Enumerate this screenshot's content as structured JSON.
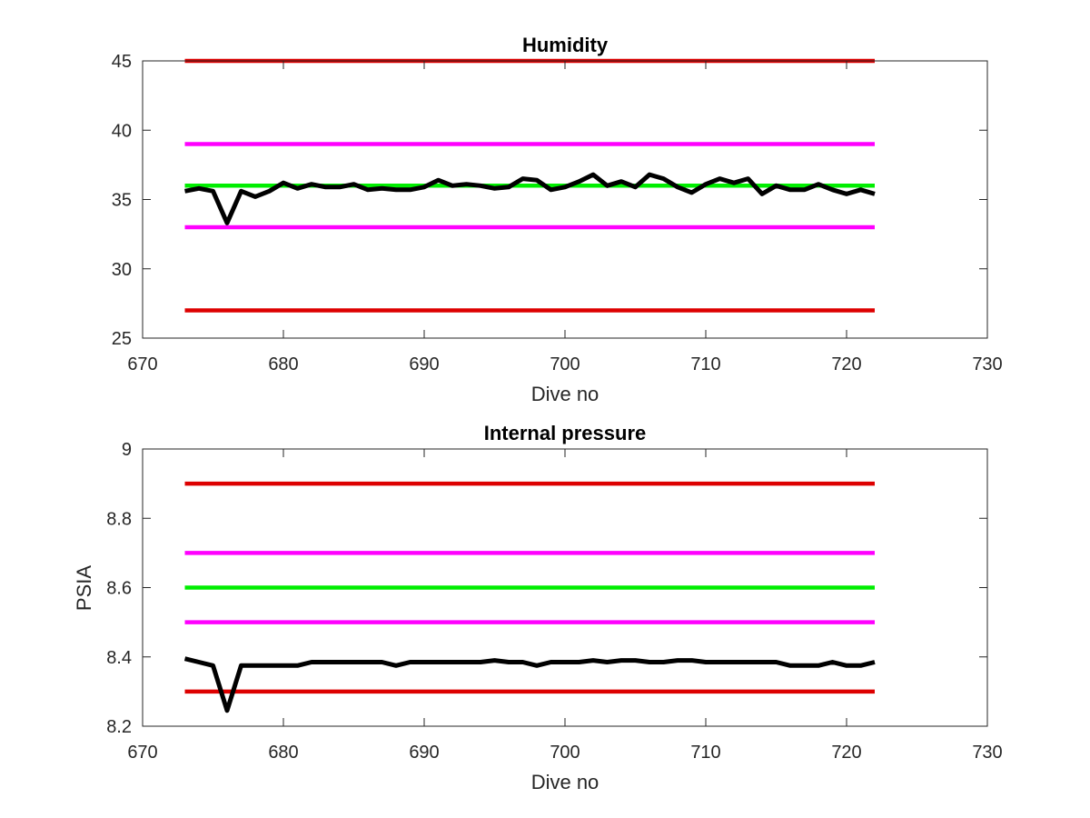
{
  "chart_data": [
    {
      "type": "line",
      "title": "Humidity",
      "xlabel": "Dive no",
      "ylabel": "",
      "xlim": [
        670,
        730
      ],
      "ylim": [
        25,
        45
      ],
      "xticks": [
        670,
        680,
        690,
        700,
        710,
        720,
        730
      ],
      "yticks": [
        25,
        30,
        35,
        40,
        45
      ],
      "grid": false,
      "series": [
        {
          "color": "#000000",
          "x": [
            673,
            674,
            675,
            676,
            677,
            678,
            679,
            680,
            681,
            682,
            683,
            684,
            685,
            686,
            687,
            688,
            689,
            690,
            691,
            692,
            693,
            694,
            695,
            696,
            697,
            698,
            699,
            700,
            701,
            702,
            703,
            704,
            705,
            706,
            707,
            708,
            709,
            710,
            711,
            712,
            713,
            714,
            715,
            716,
            717,
            718,
            719,
            720,
            721,
            722
          ],
          "y": [
            35.6,
            35.8,
            35.6,
            33.3,
            35.6,
            35.2,
            35.6,
            36.2,
            35.8,
            36.1,
            35.9,
            35.9,
            36.1,
            35.7,
            35.8,
            35.7,
            35.7,
            35.9,
            36.4,
            36.0,
            36.1,
            36.0,
            35.8,
            35.9,
            36.5,
            36.4,
            35.7,
            35.9,
            36.3,
            36.8,
            36.0,
            36.3,
            35.9,
            36.8,
            36.5,
            35.9,
            35.5,
            36.1,
            36.5,
            36.2,
            36.5,
            35.4,
            36.0,
            35.7,
            35.7,
            36.1,
            35.7,
            35.4,
            35.7,
            35.4
          ]
        },
        {
          "color": "#dd0000",
          "x": [
            673,
            722
          ],
          "y": [
            45,
            45
          ]
        },
        {
          "color": "#ff00ff",
          "x": [
            673,
            722
          ],
          "y": [
            39,
            39
          ]
        },
        {
          "color": "#00ee00",
          "x": [
            673,
            722
          ],
          "y": [
            36,
            36
          ]
        },
        {
          "color": "#ff00ff",
          "x": [
            673,
            722
          ],
          "y": [
            33,
            33
          ]
        },
        {
          "color": "#dd0000",
          "x": [
            673,
            722
          ],
          "y": [
            27,
            27
          ]
        }
      ]
    },
    {
      "type": "line",
      "title": "Internal pressure",
      "xlabel": "Dive no",
      "ylabel": "PSIA",
      "xlim": [
        670,
        730
      ],
      "ylim": [
        8.2,
        9
      ],
      "xticks": [
        670,
        680,
        690,
        700,
        710,
        720,
        730
      ],
      "yticks": [
        8.2,
        8.4,
        8.6,
        8.8,
        9
      ],
      "grid": false,
      "series": [
        {
          "color": "#000000",
          "x": [
            673,
            674,
            675,
            676,
            677,
            678,
            679,
            680,
            681,
            682,
            683,
            684,
            685,
            686,
            687,
            688,
            689,
            690,
            691,
            692,
            693,
            694,
            695,
            696,
            697,
            698,
            699,
            700,
            701,
            702,
            703,
            704,
            705,
            706,
            707,
            708,
            709,
            710,
            711,
            712,
            713,
            714,
            715,
            716,
            717,
            718,
            719,
            720,
            721,
            722
          ],
          "y": [
            8.395,
            8.385,
            8.375,
            8.245,
            8.375,
            8.375,
            8.375,
            8.375,
            8.375,
            8.385,
            8.385,
            8.385,
            8.385,
            8.385,
            8.385,
            8.375,
            8.385,
            8.385,
            8.385,
            8.385,
            8.385,
            8.385,
            8.39,
            8.385,
            8.385,
            8.375,
            8.385,
            8.385,
            8.385,
            8.39,
            8.385,
            8.39,
            8.39,
            8.385,
            8.385,
            8.39,
            8.39,
            8.385,
            8.385,
            8.385,
            8.385,
            8.385,
            8.385,
            8.375,
            8.375,
            8.375,
            8.385,
            8.375,
            8.375,
            8.385
          ]
        },
        {
          "color": "#dd0000",
          "x": [
            673,
            722
          ],
          "y": [
            8.9,
            8.9
          ]
        },
        {
          "color": "#ff00ff",
          "x": [
            673,
            722
          ],
          "y": [
            8.7,
            8.7
          ]
        },
        {
          "color": "#00ee00",
          "x": [
            673,
            722
          ],
          "y": [
            8.6,
            8.6
          ]
        },
        {
          "color": "#ff00ff",
          "x": [
            673,
            722
          ],
          "y": [
            8.5,
            8.5
          ]
        },
        {
          "color": "#dd0000",
          "x": [
            673,
            722
          ],
          "y": [
            8.3,
            8.3
          ]
        }
      ]
    }
  ]
}
